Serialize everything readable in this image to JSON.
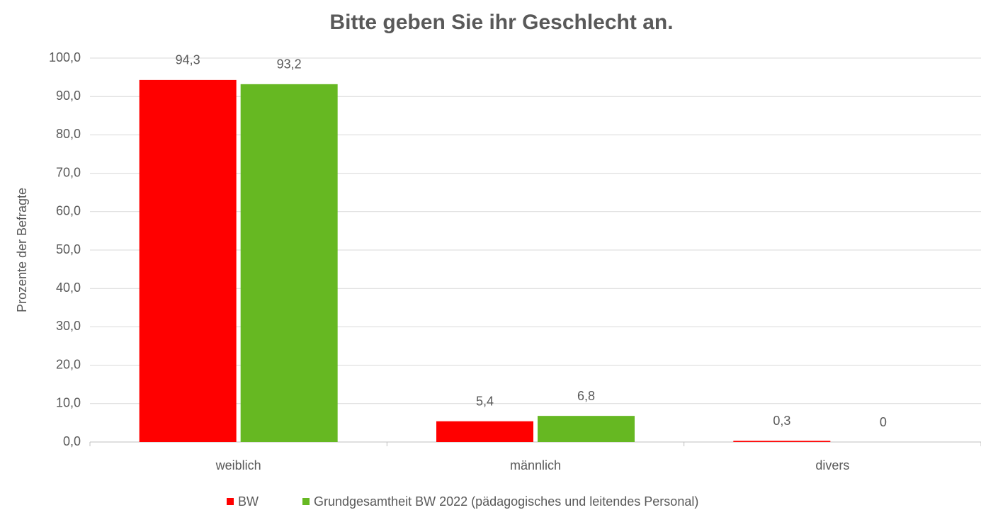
{
  "chart_data": {
    "type": "bar",
    "title": "Bitte geben Sie ihr Geschlecht an.",
    "y_label": "Prozente der Befragte",
    "categories": [
      "weiblich",
      "männlich",
      "divers"
    ],
    "series": [
      {
        "name": "BW",
        "color": "#ff0000",
        "values": [
          94.3,
          5.4,
          0.3
        ],
        "value_labels": [
          "94,3",
          "5,4",
          "0,3"
        ]
      },
      {
        "name": "Grundgesamtheit BW 2022 (pädagogisches und leitendes Personal)",
        "color": "#66b822",
        "values": [
          93.2,
          6.8,
          0
        ],
        "value_labels": [
          "93,2",
          "6,8",
          "0"
        ]
      }
    ],
    "ylim": [
      0,
      100
    ],
    "yticks": [
      {
        "value": 0,
        "label": "0,0"
      },
      {
        "value": 10,
        "label": "10,0"
      },
      {
        "value": 20,
        "label": "20,0"
      },
      {
        "value": 30,
        "label": "30,0"
      },
      {
        "value": 40,
        "label": "40,0"
      },
      {
        "value": 50,
        "label": "50,0"
      },
      {
        "value": 60,
        "label": "60,0"
      },
      {
        "value": 70,
        "label": "70,0"
      },
      {
        "value": 80,
        "label": "80,0"
      },
      {
        "value": 90,
        "label": "90,0"
      },
      {
        "value": 100,
        "label": "100,0"
      }
    ],
    "grid": true,
    "legend": "bottom"
  }
}
